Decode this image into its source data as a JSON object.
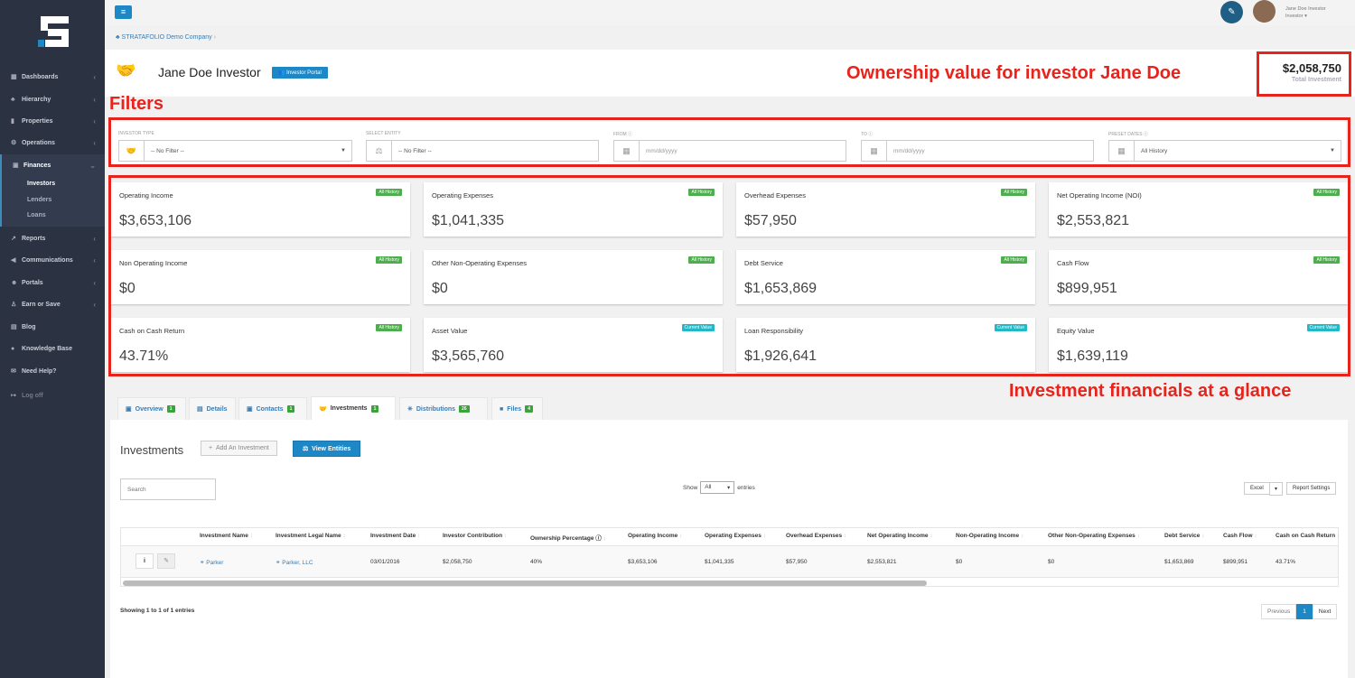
{
  "sidebar": {
    "items": [
      {
        "label": "Dashboards",
        "icon": "grid-icon"
      },
      {
        "label": "Hierarchy",
        "icon": "sitemap-icon"
      },
      {
        "label": "Properties",
        "icon": "bar-chart-icon"
      },
      {
        "label": "Operations",
        "icon": "cogs-icon"
      },
      {
        "label": "Finances",
        "icon": "money-icon"
      },
      {
        "label": "Reports",
        "icon": "line-chart-icon"
      },
      {
        "label": "Communications",
        "icon": "bullhorn-icon"
      },
      {
        "label": "Portals",
        "icon": "users-icon"
      },
      {
        "label": "Earn or Save",
        "icon": "thumbs-up-icon"
      },
      {
        "label": "Blog",
        "icon": "newspaper-icon"
      },
      {
        "label": "Knowledge Base",
        "icon": "question-icon"
      },
      {
        "label": "Need Help?",
        "icon": "chat-icon"
      },
      {
        "label": "Log off",
        "icon": "sign-out-icon"
      }
    ],
    "finance_sub": [
      "Investors",
      "Lenders",
      "Loans"
    ]
  },
  "topbar": {
    "user_name": "Jane Doe Investor",
    "user_role": "Investor"
  },
  "breadcrumb": "STRATAFOLIO Demo Company",
  "header": {
    "title": "Jane Doe Investor",
    "portal_button": "Investor Portal",
    "total_value": "$2,058,750",
    "total_label": "Total Investment"
  },
  "annotations": {
    "ownership": "Ownership value for investor Jane Doe",
    "filters": "Filters",
    "financials": "Investment financials at a glance"
  },
  "filters": [
    {
      "label": "Investor Type",
      "value": "-- No Filter --"
    },
    {
      "label": "Select Entity",
      "value": "-- No Filter --"
    },
    {
      "label": "From",
      "placeholder": "mm/dd/yyyy"
    },
    {
      "label": "To",
      "placeholder": "mm/dd/yyyy"
    },
    {
      "label": "Preset Dates",
      "value": "All History"
    }
  ],
  "cards": [
    {
      "label": "Operating Income",
      "value": "$3,653,106",
      "badge": "All History"
    },
    {
      "label": "Operating Expenses",
      "value": "$1,041,335",
      "badge": "All History"
    },
    {
      "label": "Overhead Expenses",
      "value": "$57,950",
      "badge": "All History"
    },
    {
      "label": "Net Operating Income (NOI)",
      "value": "$2,553,821",
      "badge": "All History"
    },
    {
      "label": "Non Operating Income",
      "value": "$0",
      "badge": "All History"
    },
    {
      "label": "Other Non-Operating Expenses",
      "value": "$0",
      "badge": "All History"
    },
    {
      "label": "Debt Service",
      "value": "$1,653,869",
      "badge": "All History"
    },
    {
      "label": "Cash Flow",
      "value": "$899,951",
      "badge": "All History"
    },
    {
      "label": "Cash on Cash Return",
      "value": "43.71%",
      "badge": "All History"
    },
    {
      "label": "Asset Value",
      "value": "$3,565,760",
      "badge": "Current Value"
    },
    {
      "label": "Loan Responsibility",
      "value": "$1,926,641",
      "badge": "Current Value"
    },
    {
      "label": "Equity Value",
      "value": "$1,639,119",
      "badge": "Current Value"
    }
  ],
  "colors": {
    "all_history": "#4cae4c",
    "current_value": "#22b8c8",
    "accent": "#1e88c7",
    "annotation": "#e8231b"
  },
  "tabs": [
    {
      "label": "Overview",
      "count": "1"
    },
    {
      "label": "Details"
    },
    {
      "label": "Contacts",
      "count": "1"
    },
    {
      "label": "Investments",
      "count": "1"
    },
    {
      "label": "Distributions",
      "count": "26"
    },
    {
      "label": "Files",
      "count": "4"
    }
  ],
  "investments": {
    "title": "Investments",
    "add_button": "Add An Investment",
    "view_button": "View Entities",
    "search_placeholder": "Search",
    "show_label": "Show",
    "show_value": "All",
    "entries_label": "entries",
    "excel": "Excel",
    "report_settings": "Report Settings",
    "columns": [
      "Investment Name",
      "Investment Legal Name",
      "Investment Date",
      "Investor Contribution",
      "Ownership Percentage",
      "Operating Income",
      "Operating Expenses",
      "Overhead Expenses",
      "Net Operating Income",
      "Non-Operating Income",
      "Other Non-Operating Expenses",
      "Debt Service",
      "Cash Flow",
      "Cash on Cash Return"
    ],
    "row": [
      "Parker",
      "Parker, LLC",
      "03/01/2016",
      "$2,058,750",
      "40%",
      "$3,653,106",
      "$1,041,335",
      "$57,950",
      "$2,553,821",
      "$0",
      "$0",
      "$1,653,869",
      "$899,951",
      "43.71%"
    ],
    "info": "Showing 1 to 1 of 1 entries",
    "prev": "Previous",
    "page": "1",
    "next": "Next"
  }
}
